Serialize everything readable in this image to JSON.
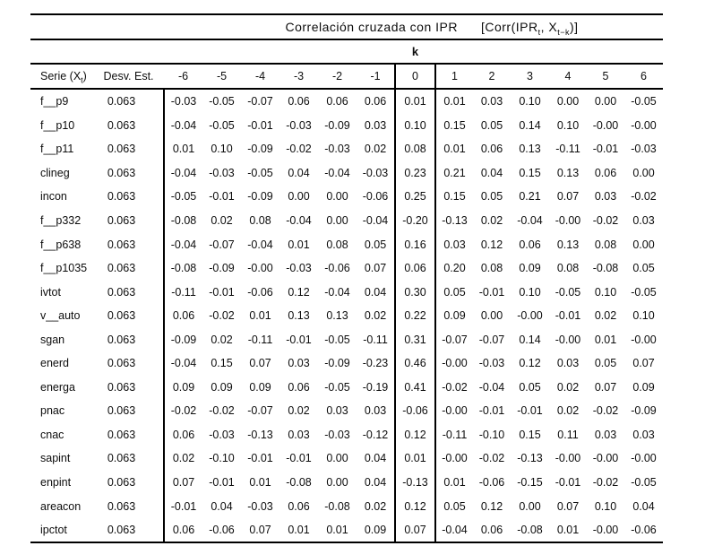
{
  "table": {
    "title": {
      "main": "Correlación cruzada con IPR",
      "formula": {
        "p1": "[Corr(IPR",
        "s1": "t",
        "p2": ", X",
        "s2": "t−k",
        "p3": ")]"
      }
    },
    "k_label": "k",
    "headers": {
      "serie": {
        "p1": "Serie (X",
        "sub": "t",
        "p2": ")"
      },
      "desv": "Desv. Est.",
      "k_values": [
        "-6",
        "-5",
        "-4",
        "-3",
        "-2",
        "-1",
        "0",
        "1",
        "2",
        "3",
        "4",
        "5",
        "6"
      ]
    },
    "rows": [
      {
        "name": "f__p9",
        "sd": "0.063",
        "values": [
          "-0.03",
          "-0.05",
          "-0.07",
          "0.06",
          "0.06",
          "0.06",
          "0.01",
          "0.01",
          "0.03",
          "0.10",
          "0.00",
          "0.00",
          "-0.05"
        ]
      },
      {
        "name": "f__p10",
        "sd": "0.063",
        "values": [
          "-0.04",
          "-0.05",
          "-0.01",
          "-0.03",
          "-0.09",
          "0.03",
          "0.10",
          "0.15",
          "0.05",
          "0.14",
          "0.10",
          "-0.00",
          "-0.00"
        ]
      },
      {
        "name": "f__p11",
        "sd": "0.063",
        "values": [
          "0.01",
          "0.10",
          "-0.09",
          "-0.02",
          "-0.03",
          "0.02",
          "0.08",
          "0.01",
          "0.06",
          "0.13",
          "-0.11",
          "-0.01",
          "-0.03"
        ]
      },
      {
        "name": "clineg",
        "sd": "0.063",
        "values": [
          "-0.04",
          "-0.03",
          "-0.05",
          "0.04",
          "-0.04",
          "-0.03",
          "0.23",
          "0.21",
          "0.04",
          "0.15",
          "0.13",
          "0.06",
          "0.00"
        ]
      },
      {
        "name": "incon",
        "sd": "0.063",
        "values": [
          "-0.05",
          "-0.01",
          "-0.09",
          "0.00",
          "0.00",
          "-0.06",
          "0.25",
          "0.15",
          "0.05",
          "0.21",
          "0.07",
          "0.03",
          "-0.02"
        ]
      },
      {
        "name": "f__p332",
        "sd": "0.063",
        "values": [
          "-0.08",
          "0.02",
          "0.08",
          "-0.04",
          "0.00",
          "-0.04",
          "-0.20",
          "-0.13",
          "0.02",
          "-0.04",
          "-0.00",
          "-0.02",
          "0.03"
        ]
      },
      {
        "name": "f__p638",
        "sd": "0.063",
        "values": [
          "-0.04",
          "-0.07",
          "-0.04",
          "0.01",
          "0.08",
          "0.05",
          "0.16",
          "0.03",
          "0.12",
          "0.06",
          "0.13",
          "0.08",
          "0.00"
        ]
      },
      {
        "name": "f__p1035",
        "sd": "0.063",
        "values": [
          "-0.08",
          "-0.09",
          "-0.00",
          "-0.03",
          "-0.06",
          "0.07",
          "0.06",
          "0.20",
          "0.08",
          "0.09",
          "0.08",
          "-0.08",
          "0.05"
        ]
      },
      {
        "name": "ivtot",
        "sd": "0.063",
        "values": [
          "-0.11",
          "-0.01",
          "-0.06",
          "0.12",
          "-0.04",
          "0.04",
          "0.30",
          "0.05",
          "-0.01",
          "0.10",
          "-0.05",
          "0.10",
          "-0.05"
        ]
      },
      {
        "name": "v__auto",
        "sd": "0.063",
        "values": [
          "0.06",
          "-0.02",
          "0.01",
          "0.13",
          "0.13",
          "0.02",
          "0.22",
          "0.09",
          "0.00",
          "-0.00",
          "-0.01",
          "0.02",
          "0.10"
        ]
      },
      {
        "name": "sgan",
        "sd": "0.063",
        "values": [
          "-0.09",
          "0.02",
          "-0.11",
          "-0.01",
          "-0.05",
          "-0.11",
          "0.31",
          "-0.07",
          "-0.07",
          "0.14",
          "-0.00",
          "0.01",
          "-0.00"
        ]
      },
      {
        "name": "enerd",
        "sd": "0.063",
        "values": [
          "-0.04",
          "0.15",
          "0.07",
          "0.03",
          "-0.09",
          "-0.23",
          "0.46",
          "-0.00",
          "-0.03",
          "0.12",
          "0.03",
          "0.05",
          "0.07"
        ]
      },
      {
        "name": "energa",
        "sd": "0.063",
        "values": [
          "0.09",
          "0.09",
          "0.09",
          "0.06",
          "-0.05",
          "-0.19",
          "0.41",
          "-0.02",
          "-0.04",
          "0.05",
          "0.02",
          "0.07",
          "0.09"
        ]
      },
      {
        "name": "pnac",
        "sd": "0.063",
        "values": [
          "-0.02",
          "-0.02",
          "-0.07",
          "0.02",
          "0.03",
          "0.03",
          "-0.06",
          "-0.00",
          "-0.01",
          "-0.01",
          "0.02",
          "-0.02",
          "-0.09"
        ]
      },
      {
        "name": "cnac",
        "sd": "0.063",
        "values": [
          "0.06",
          "-0.03",
          "-0.13",
          "0.03",
          "-0.03",
          "-0.12",
          "0.12",
          "-0.11",
          "-0.10",
          "0.15",
          "0.11",
          "0.03",
          "0.03"
        ]
      },
      {
        "name": "sapint",
        "sd": "0.063",
        "values": [
          "0.02",
          "-0.10",
          "-0.01",
          "-0.01",
          "0.00",
          "0.04",
          "0.01",
          "-0.00",
          "-0.02",
          "-0.13",
          "-0.00",
          "-0.00",
          "-0.00"
        ]
      },
      {
        "name": "enpint",
        "sd": "0.063",
        "values": [
          "0.07",
          "-0.01",
          "0.01",
          "-0.08",
          "0.00",
          "0.04",
          "-0.13",
          "0.01",
          "-0.06",
          "-0.15",
          "-0.01",
          "-0.02",
          "-0.05"
        ]
      },
      {
        "name": "areacon",
        "sd": "0.063",
        "values": [
          "-0.01",
          "0.04",
          "-0.03",
          "0.06",
          "-0.08",
          "0.02",
          "0.12",
          "0.05",
          "0.12",
          "0.00",
          "0.07",
          "0.10",
          "0.04"
        ]
      },
      {
        "name": "ipctot",
        "sd": "0.063",
        "values": [
          "0.06",
          "-0.06",
          "0.07",
          "0.01",
          "0.01",
          "0.09",
          "0.07",
          "-0.04",
          "0.06",
          "-0.08",
          "0.01",
          "-0.00",
          "-0.06"
        ]
      }
    ],
    "colors": {
      "line": "#000000",
      "text": "#0d0d0d",
      "background": "#ffffff"
    }
  }
}
